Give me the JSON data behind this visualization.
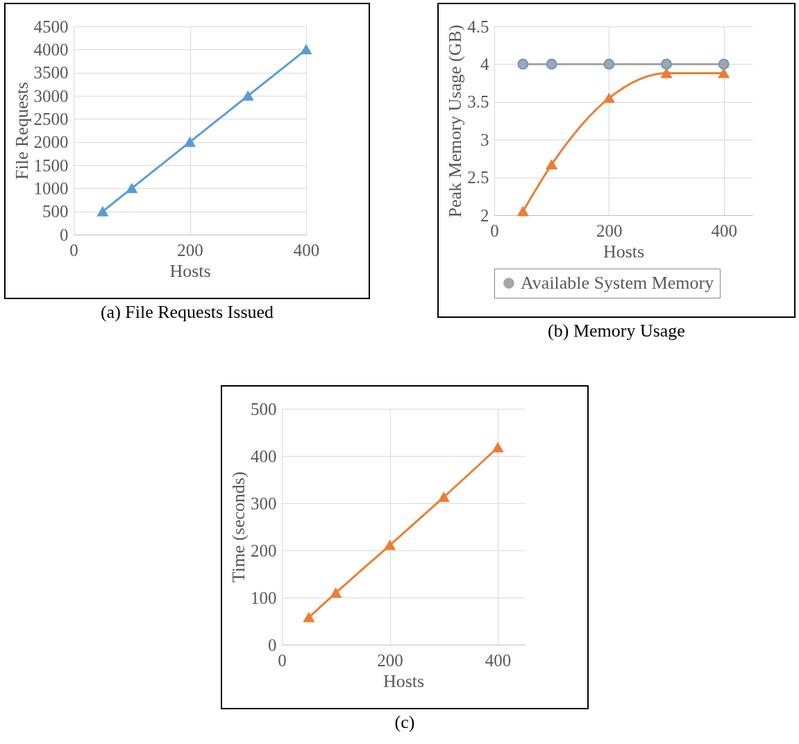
{
  "chart_data": [
    {
      "type": "line",
      "title": "(a) File Requests Issued",
      "xlabel": "Hosts",
      "ylabel": "File Requests",
      "xlim": [
        0,
        400
      ],
      "xticks": [
        0,
        200,
        400
      ],
      "ylim": [
        0,
        4500
      ],
      "yticks": [
        0,
        500,
        1000,
        1500,
        2000,
        2500,
        3000,
        3500,
        4000,
        4500
      ],
      "grid": true,
      "legend": false,
      "marker": "triangle",
      "x": [
        50,
        100,
        200,
        300,
        400
      ],
      "series": [
        {
          "color": "#5b9bd5",
          "values": [
            500,
            1000,
            2000,
            3000,
            4000
          ]
        }
      ]
    },
    {
      "type": "line",
      "title": "(b) Memory Usage",
      "xlabel": "Hosts",
      "ylabel": "Peak Memory Usage (GB)",
      "xlim": [
        0,
        450
      ],
      "xticks": [
        0,
        200,
        400
      ],
      "ylim": [
        2,
        4.5
      ],
      "yticks": [
        2,
        2.5,
        3,
        3.5,
        4,
        4.5
      ],
      "grid": true,
      "legend": "bottom",
      "x": [
        50,
        100,
        200,
        300,
        400
      ],
      "series": [
        {
          "name": "Available System Memory",
          "color": "#a5a5a5",
          "marker": "circle",
          "values": [
            4,
            4,
            4,
            4,
            4
          ]
        },
        {
          "color": "#ed7d31",
          "marker": "triangle",
          "values": [
            2.05,
            2.67,
            3.55,
            3.88,
            3.88
          ]
        }
      ]
    },
    {
      "type": "line",
      "title": "(c)",
      "xlabel": "Hosts",
      "ylabel": "Time (seconds)",
      "xlim": [
        0,
        450
      ],
      "xticks": [
        0,
        200,
        400
      ],
      "ylim": [
        0,
        500
      ],
      "yticks": [
        0,
        100,
        200,
        300,
        400,
        500
      ],
      "grid": true,
      "legend": false,
      "marker": "triangle",
      "x": [
        50,
        100,
        200,
        300,
        400
      ],
      "series": [
        {
          "color": "#ed7d31",
          "values": [
            58,
            110,
            211,
            313,
            418
          ]
        }
      ]
    }
  ]
}
